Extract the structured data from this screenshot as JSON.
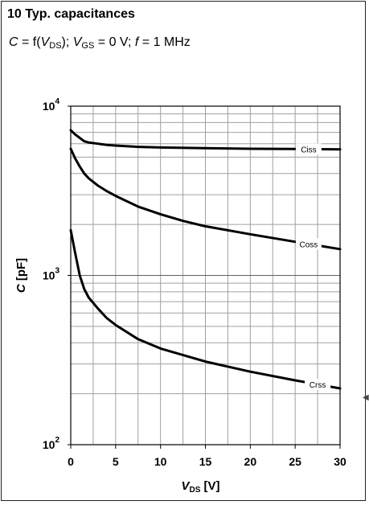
{
  "heading": {
    "title": "10 Typ. capacitances",
    "condition": {
      "var_c": "C",
      "eq1": " = f(",
      "var_v": "V",
      "sub_ds": "DS",
      "mid": "); ",
      "var_v2": "V",
      "sub_gs": "GS",
      "eq2": " = 0 V; ",
      "var_f": "f",
      "eq3": " = 1 MHz"
    }
  },
  "chart_data": {
    "type": "line",
    "x_axis": {
      "label_main": "V",
      "label_sub": "DS",
      "label_unit": " [V]",
      "range": [
        0,
        30
      ],
      "major_ticks": [
        0,
        5,
        10,
        15,
        20,
        25,
        30
      ],
      "grid_step": 2.5,
      "grid": true
    },
    "y_axis": {
      "label": "C [pF]",
      "scale": "log",
      "range": [
        100,
        10000
      ],
      "decade_ticks": [
        {
          "value": 100,
          "base": "10",
          "exp": "2"
        },
        {
          "value": 1000,
          "base": "10",
          "exp": "3"
        },
        {
          "value": 10000,
          "base": "10",
          "exp": "4"
        }
      ],
      "grid": true
    },
    "series": [
      {
        "name": "Ciss",
        "label_at_x": 26.5,
        "x": [
          0,
          0.5,
          1,
          1.5,
          2,
          3,
          4,
          5,
          7.5,
          10,
          15,
          20,
          25,
          30
        ],
        "y": [
          7200,
          6800,
          6500,
          6200,
          6100,
          6000,
          5900,
          5850,
          5750,
          5700,
          5650,
          5600,
          5580,
          5560
        ]
      },
      {
        "name": "Coss",
        "label_at_x": 26.5,
        "x": [
          0,
          0.5,
          1,
          1.5,
          2,
          3,
          4,
          5,
          7.5,
          10,
          12.5,
          15,
          20,
          25,
          30
        ],
        "y": [
          5600,
          4900,
          4400,
          4000,
          3750,
          3400,
          3150,
          2950,
          2550,
          2300,
          2100,
          1950,
          1750,
          1580,
          1430
        ]
      },
      {
        "name": "Crss",
        "label_at_x": 27.5,
        "x": [
          0,
          0.5,
          1,
          1.5,
          2,
          3,
          4,
          5,
          7.5,
          10,
          15,
          20,
          25,
          30
        ],
        "y": [
          1850,
          1350,
          1000,
          830,
          740,
          640,
          560,
          510,
          420,
          370,
          310,
          270,
          240,
          215
        ]
      }
    ],
    "line_color": "#000000",
    "grid_color": "#a0a0a0"
  }
}
